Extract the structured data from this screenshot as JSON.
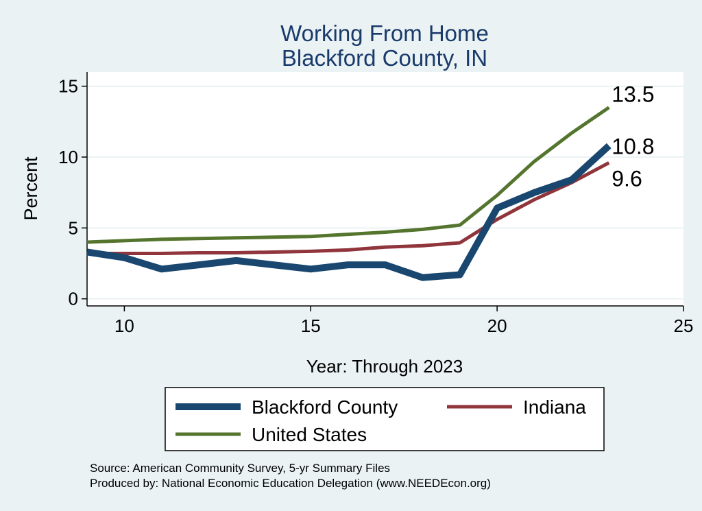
{
  "colors": {
    "background": "#eaf2f3",
    "plot_background": "#ffffff",
    "title": "#1a3a6b",
    "gridline": "#e4eef1",
    "axis": "#000000"
  },
  "chart_data": {
    "type": "line",
    "title": [
      "Working From Home",
      "Blackford County, IN"
    ],
    "xlabel": "Year: Through 2023",
    "ylabel": "Percent",
    "xlim": [
      9,
      25
    ],
    "ylim": [
      -0.5,
      16
    ],
    "xticks": [
      10,
      15,
      20,
      25
    ],
    "yticks": [
      0,
      5,
      10,
      15
    ],
    "grid": true,
    "legend_placement": "bottom",
    "x": [
      9,
      10,
      11,
      12,
      13,
      14,
      15,
      16,
      17,
      18,
      19,
      20,
      21,
      22,
      23
    ],
    "series": [
      {
        "name": "Blackford County",
        "color": "#1a476f",
        "width": "thick",
        "values": [
          3.3,
          2.9,
          2.1,
          2.4,
          2.7,
          2.4,
          2.1,
          2.4,
          2.4,
          1.5,
          1.7,
          6.4,
          7.5,
          8.4,
          10.8
        ],
        "end_label": "10.8"
      },
      {
        "name": "Indiana",
        "color": "#90353b",
        "width": "medium",
        "values": [
          3.2,
          3.2,
          3.2,
          3.25,
          3.25,
          3.3,
          3.35,
          3.45,
          3.65,
          3.75,
          3.95,
          5.6,
          7.0,
          8.2,
          9.6
        ],
        "end_label": "9.6"
      },
      {
        "name": "United States",
        "color": "#55752f",
        "width": "medium",
        "values": [
          4.0,
          4.1,
          4.2,
          4.25,
          4.3,
          4.35,
          4.4,
          4.55,
          4.7,
          4.9,
          5.2,
          7.3,
          9.7,
          11.7,
          13.5
        ],
        "end_label": "13.5"
      }
    ]
  },
  "source": {
    "line1": "Source: American Community Survey, 5-yr Summary Files",
    "line2": "Produced by: National Economic Education Delegation (www.NEEDEcon.org)"
  }
}
